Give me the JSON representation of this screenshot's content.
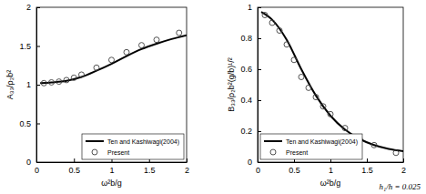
{
  "chart_data": [
    {
      "type": "line",
      "x_label": "ω²b/g",
      "y_label": "A₃₃/ρ₂b²",
      "xlim": [
        0,
        2
      ],
      "xticks": [
        0,
        0.5,
        1,
        1.5,
        2
      ],
      "ylim": [
        0,
        2
      ],
      "yticks": [
        0,
        0.5,
        1,
        1.5,
        2
      ],
      "grid": false,
      "legend": "lower right",
      "series": [
        {
          "name": "Ten and Kashiwagi(2004)",
          "type": "line",
          "color": "#000000",
          "line_style": "solid",
          "x": [
            0.05,
            0.2,
            0.4,
            0.6,
            0.8,
            1.0,
            1.2,
            1.4,
            1.6,
            1.8,
            2.0
          ],
          "values": [
            1.02,
            1.03,
            1.05,
            1.1,
            1.18,
            1.27,
            1.37,
            1.46,
            1.53,
            1.59,
            1.64
          ]
        },
        {
          "name": "Present",
          "type": "scatter",
          "color": "#404040",
          "marker": "circle",
          "x": [
            0.1,
            0.2,
            0.3,
            0.4,
            0.5,
            0.6,
            0.8,
            1.0,
            1.2,
            1.4,
            1.6,
            1.9
          ],
          "values": [
            1.02,
            1.03,
            1.04,
            1.06,
            1.09,
            1.13,
            1.22,
            1.32,
            1.42,
            1.51,
            1.58,
            1.67
          ]
        }
      ]
    },
    {
      "type": "line",
      "x_label": "ω²b/g",
      "y_label": "B₃₃/ρ₂b²(g/b)¹/²",
      "xlim": [
        0,
        2
      ],
      "xticks": [
        0,
        0.5,
        1,
        1.5,
        2
      ],
      "ylim": [
        0,
        1
      ],
      "yticks": [
        0,
        0.2,
        0.4,
        0.6,
        0.8,
        1
      ],
      "grid": false,
      "legend": "lower left",
      "annotation": "h₁/h = 0.025",
      "series": [
        {
          "name": "Ten and Kashiwagi(2004)",
          "type": "line",
          "color": "#000000",
          "line_style": "solid",
          "x": [
            0.05,
            0.2,
            0.4,
            0.6,
            0.8,
            1.0,
            1.2,
            1.4,
            1.6,
            1.8,
            2.0
          ],
          "values": [
            0.97,
            0.92,
            0.79,
            0.6,
            0.43,
            0.3,
            0.21,
            0.15,
            0.11,
            0.085,
            0.07
          ]
        },
        {
          "name": "Present",
          "type": "scatter",
          "color": "#404040",
          "marker": "circle",
          "x": [
            0.1,
            0.2,
            0.3,
            0.4,
            0.5,
            0.6,
            0.7,
            0.8,
            0.9,
            1.0,
            1.2,
            1.4,
            1.6,
            1.9
          ],
          "values": [
            0.95,
            0.9,
            0.85,
            0.76,
            0.66,
            0.55,
            0.48,
            0.42,
            0.36,
            0.31,
            0.22,
            0.15,
            0.11,
            0.06
          ]
        }
      ]
    }
  ]
}
